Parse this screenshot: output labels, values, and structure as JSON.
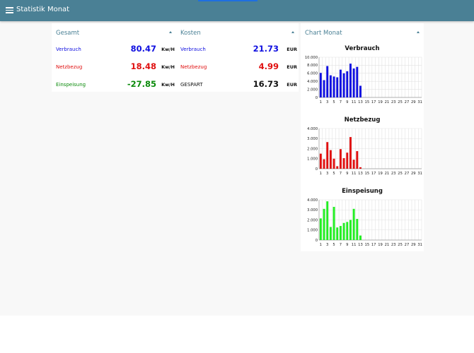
{
  "app": {
    "title": "Statistik Monat"
  },
  "gesamt": {
    "title": "Gesamt",
    "rows": [
      {
        "label": "Verbrauch",
        "value": "80.47",
        "unit": "Kw/H",
        "color": "#1010e0"
      },
      {
        "label": "Netzbezug",
        "value": "18.48",
        "unit": "Kw/H",
        "color": "#e01010"
      },
      {
        "label": "Einspeisung",
        "value": "-27.85",
        "unit": "Kw/H",
        "color": "#0a8a0a"
      }
    ]
  },
  "kosten": {
    "title": "Kosten",
    "rows": [
      {
        "label": "Verbrauch",
        "value": "21.73",
        "unit": "EUR",
        "color": "#1010e0"
      },
      {
        "label": "Netzbezug",
        "value": "4.99",
        "unit": "EUR",
        "color": "#e01010"
      },
      {
        "label": "GESPART",
        "value": "16.73",
        "unit": "EUR",
        "color": "#111111"
      }
    ]
  },
  "chart_card": {
    "title": "Chart Monat"
  },
  "chart_data": [
    {
      "type": "bar",
      "title": "Verbrauch",
      "color": "#1010e0",
      "x": [
        1,
        2,
        3,
        4,
        5,
        6,
        7,
        8,
        9,
        10,
        11,
        12,
        13,
        14,
        15,
        16,
        17,
        18,
        19,
        20,
        21,
        22,
        23,
        24,
        25,
        26,
        27,
        28,
        29,
        30,
        31
      ],
      "x_tick_labels": [
        "1",
        "3",
        "5",
        "7",
        "9",
        "11",
        "13",
        "15",
        "17",
        "19",
        "21",
        "23",
        "25",
        "27",
        "29",
        "31"
      ],
      "values": [
        6100,
        4300,
        7800,
        5500,
        5200,
        5000,
        6900,
        6000,
        6500,
        8400,
        7200,
        7600,
        2900,
        0,
        0,
        0,
        0,
        0,
        0,
        0,
        0,
        0,
        0,
        0,
        0,
        0,
        0,
        0,
        0,
        0,
        0
      ],
      "y_tick_labels": [
        "0",
        "2.000",
        "4.000",
        "6.000",
        "8.000",
        "10.000"
      ],
      "ylim": [
        0,
        10000
      ]
    },
    {
      "type": "bar",
      "title": "Netzbezug",
      "color": "#e01010",
      "x": [
        1,
        2,
        3,
        4,
        5,
        6,
        7,
        8,
        9,
        10,
        11,
        12,
        13,
        14,
        15,
        16,
        17,
        18,
        19,
        20,
        21,
        22,
        23,
        24,
        25,
        26,
        27,
        28,
        29,
        30,
        31
      ],
      "x_tick_labels": [
        "1",
        "3",
        "5",
        "7",
        "9",
        "11",
        "13",
        "15",
        "17",
        "19",
        "21",
        "23",
        "25",
        "27",
        "29",
        "31"
      ],
      "values": [
        1500,
        950,
        2650,
        1850,
        1000,
        250,
        1950,
        1050,
        1600,
        3150,
        900,
        1750,
        150,
        0,
        0,
        0,
        0,
        0,
        0,
        0,
        0,
        0,
        0,
        0,
        0,
        0,
        0,
        0,
        0,
        0,
        0
      ],
      "y_tick_labels": [
        "0",
        "1.000",
        "2.000",
        "3.000",
        "4.000"
      ],
      "ylim": [
        0,
        4000
      ]
    },
    {
      "type": "bar",
      "title": "Einspeisung",
      "color": "#22ee22",
      "x": [
        1,
        2,
        3,
        4,
        5,
        6,
        7,
        8,
        9,
        10,
        11,
        12,
        13,
        14,
        15,
        16,
        17,
        18,
        19,
        20,
        21,
        22,
        23,
        24,
        25,
        26,
        27,
        28,
        29,
        30,
        31
      ],
      "x_tick_labels": [
        "1",
        "3",
        "5",
        "7",
        "9",
        "11",
        "13",
        "15",
        "17",
        "19",
        "21",
        "23",
        "25",
        "27",
        "29",
        "31"
      ],
      "values": [
        2150,
        3100,
        3850,
        1300,
        3300,
        1250,
        1400,
        1700,
        1800,
        2000,
        3100,
        2100,
        450,
        0,
        0,
        0,
        0,
        0,
        0,
        0,
        0,
        0,
        0,
        0,
        0,
        0,
        0,
        0,
        0,
        0,
        0
      ],
      "y_tick_labels": [
        "0",
        "1.000",
        "2.000",
        "3.000",
        "4.000"
      ],
      "ylim": [
        0,
        4000
      ]
    }
  ]
}
